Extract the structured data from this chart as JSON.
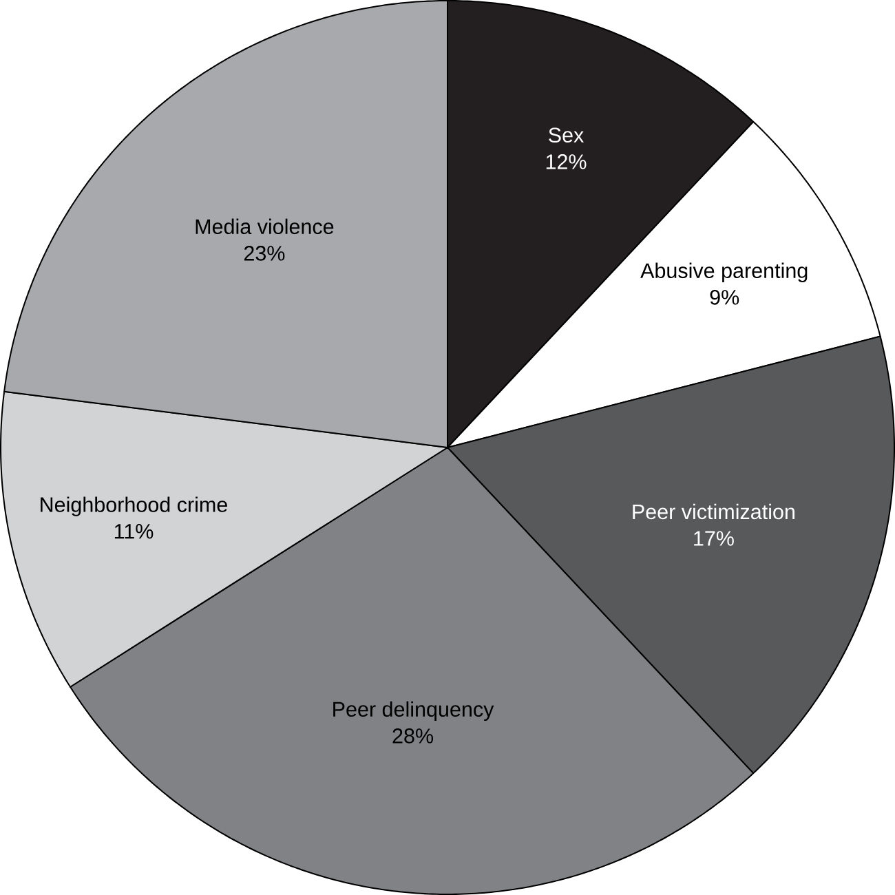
{
  "chart_data": {
    "type": "pie",
    "categories": [
      "Sex",
      "Abusive parenting",
      "Peer victimization",
      "Peer delinquency",
      "Neighborhood crime",
      "Media violence"
    ],
    "values": [
      12,
      9,
      17,
      28,
      11,
      23
    ],
    "value_labels": [
      "12%",
      "9%",
      "17%",
      "28%",
      "11%",
      "23%"
    ],
    "colors": [
      "#231f20",
      "#ffffff",
      "#58595b",
      "#808285",
      "#d1d3d4",
      "#a7a9ac"
    ]
  }
}
